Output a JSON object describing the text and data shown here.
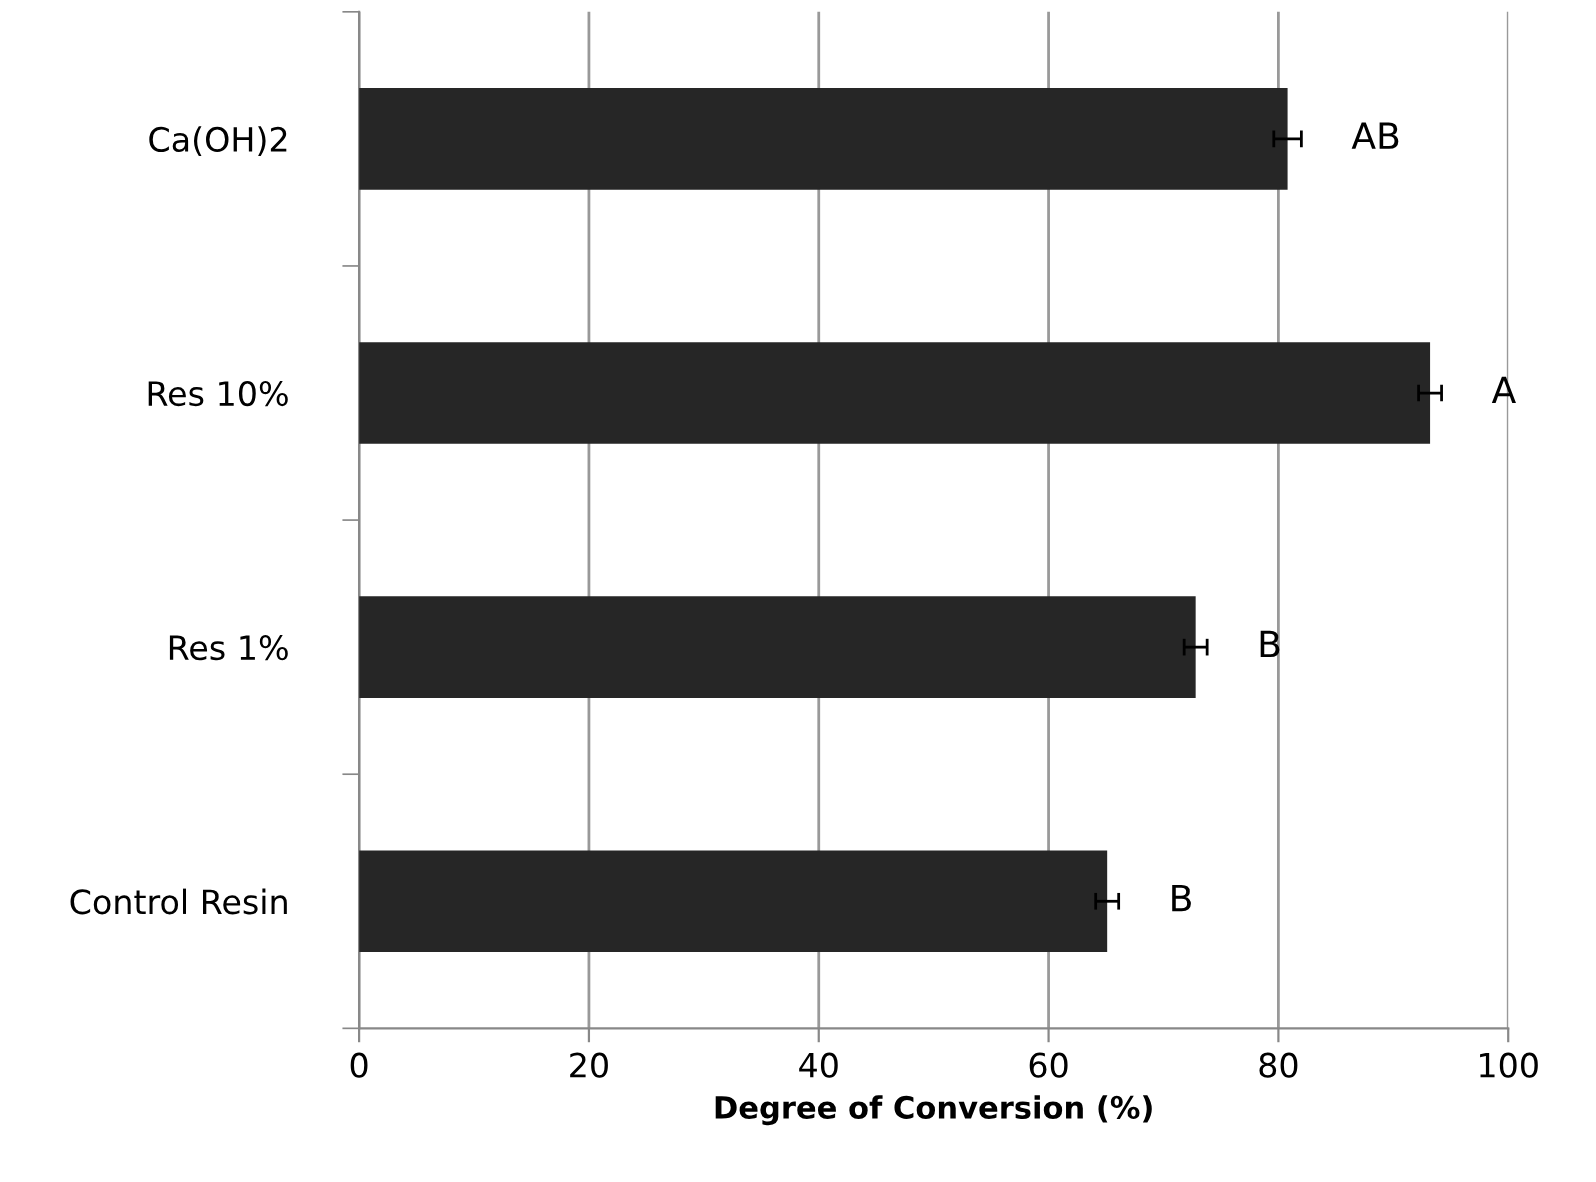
{
  "chart_data": {
    "type": "bar",
    "orientation": "horizontal",
    "xlabel": "Degree of Conversion (%)",
    "categories": [
      "Ca(OH)2",
      "Res 10%",
      "Res 1%",
      "Control Resin"
    ],
    "values": [
      80.8,
      93.2,
      72.8,
      65.1
    ],
    "errors": [
      1.2,
      1.0,
      1.0,
      1.0
    ],
    "color": "#262626",
    "xlim": [
      0,
      100
    ],
    "xticks": [
      0,
      20,
      40,
      60,
      80,
      100
    ],
    "grid": "x",
    "annotations": [
      "AB",
      "A",
      "B",
      "B"
    ]
  }
}
